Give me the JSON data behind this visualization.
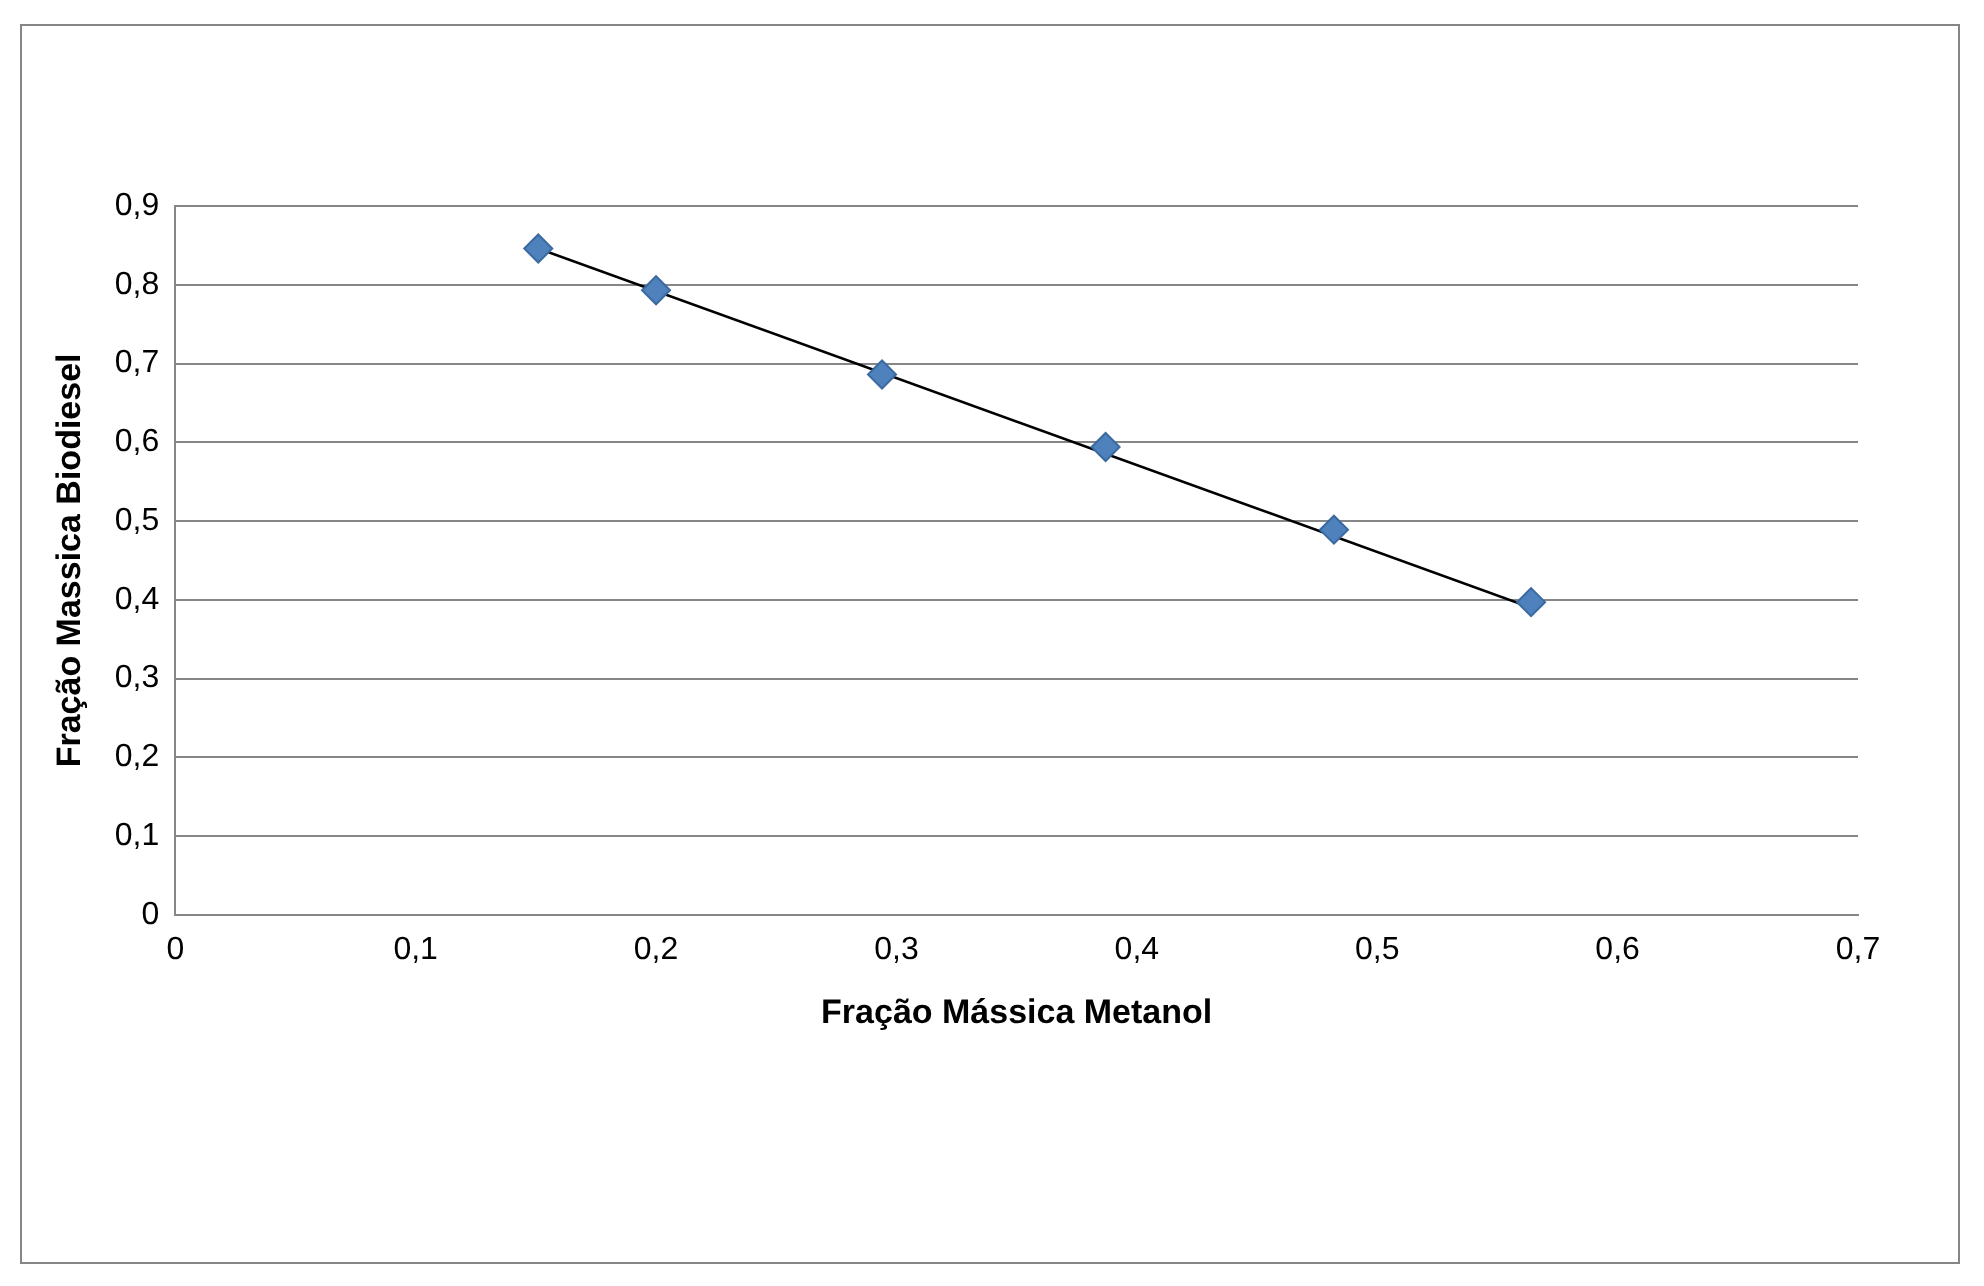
{
  "chart_data": {
    "type": "scatter",
    "xlabel": "Fração Mássica Metanol",
    "ylabel": "Fração Massica Biodiesel",
    "xlim": [
      0,
      0.7
    ],
    "xticks": [
      {
        "value": 0,
        "label": "0"
      },
      {
        "value": 0.1,
        "label": "0,1"
      },
      {
        "value": 0.2,
        "label": "0,2"
      },
      {
        "value": 0.3,
        "label": "0,3"
      },
      {
        "value": 0.4,
        "label": "0,4"
      },
      {
        "value": 0.5,
        "label": "0,5"
      },
      {
        "value": 0.6,
        "label": "0,6"
      },
      {
        "value": 0.7,
        "label": "0,7"
      }
    ],
    "ylim": [
      0,
      0.9
    ],
    "yticks": [
      {
        "value": 0,
        "label": "0"
      },
      {
        "value": 0.1,
        "label": "0,1"
      },
      {
        "value": 0.2,
        "label": "0,2"
      },
      {
        "value": 0.3,
        "label": "0,3"
      },
      {
        "value": 0.4,
        "label": "0,4"
      },
      {
        "value": 0.5,
        "label": "0,5"
      },
      {
        "value": 0.6,
        "label": "0,6"
      },
      {
        "value": 0.7,
        "label": "0,7"
      },
      {
        "value": 0.8,
        "label": "0,8"
      },
      {
        "value": 0.9,
        "label": "0,9"
      }
    ],
    "grid": "y",
    "legend": false,
    "series": [
      {
        "type": "scatter",
        "marker": "diamond",
        "color": "#4f81bd",
        "x": [
          0.151,
          0.2,
          0.294,
          0.387,
          0.482,
          0.564
        ],
        "values": [
          0.846,
          0.793,
          0.686,
          0.594,
          0.489,
          0.397
        ]
      },
      {
        "type": "line",
        "marker": "none",
        "line_style": "solid",
        "color": "#000000",
        "x": [
          0.151,
          0.564
        ],
        "values": [
          0.846,
          0.39
        ]
      }
    ]
  }
}
